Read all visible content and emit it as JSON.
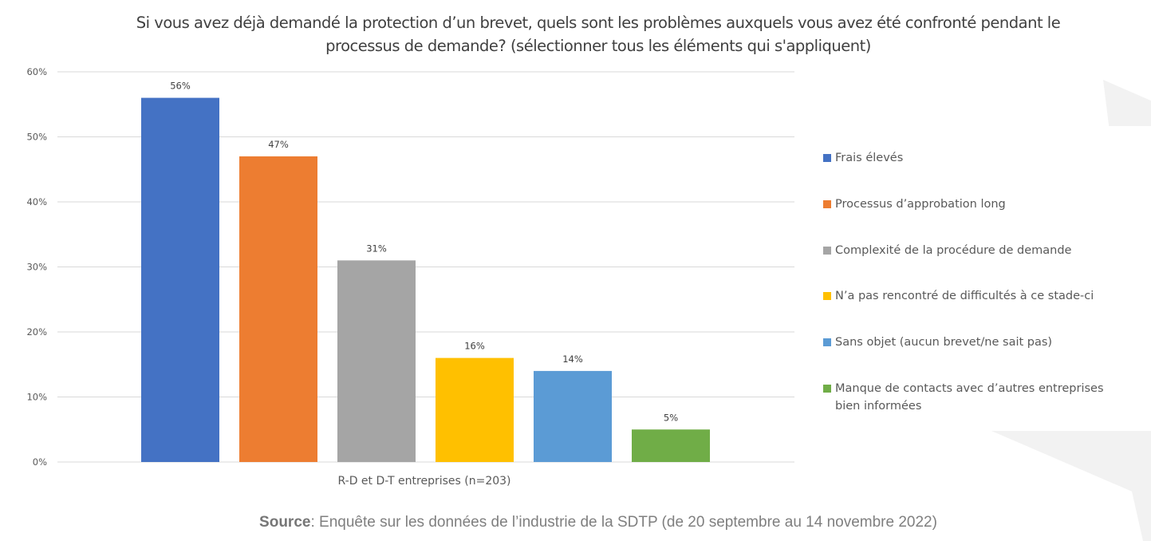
{
  "chart_data": {
    "type": "bar",
    "title": "Si vous avez déjà demandé la protection d’un brevet, quels sont les problèmes auxquels vous avez été confronté pendant le processus de demande? (sélectionner tous les éléments qui s'appliquent)",
    "title_lines": [
      "Si vous avez déjà demandé la protection d’un brevet, quels sont les problèmes auxquels vous avez été confronté pendant le",
      "processus de demande? (sélectionner tous les éléments qui s'appliquent)"
    ],
    "xlabel": "R-D et D-T entreprises (n=203)",
    "ylabel": "",
    "categories": [
      "R-D et D-T entreprises (n=203)"
    ],
    "series": [
      {
        "name": "Frais élevés",
        "values": [
          56
        ],
        "label": "56%",
        "color": "#4472c4"
      },
      {
        "name": "Processus d’approbation long",
        "values": [
          47
        ],
        "label": "47%",
        "color": "#ed7d31"
      },
      {
        "name": "Complexité de la procédure de demande",
        "values": [
          31
        ],
        "label": "31%",
        "color": "#a5a5a5"
      },
      {
        "name": "N’a pas rencontré de difficultés à ce stade-ci",
        "values": [
          16
        ],
        "label": "16%",
        "color": "#ffc000"
      },
      {
        "name": "Sans objet (aucun brevet/ne sait pas)",
        "values": [
          14
        ],
        "label": "14%",
        "color": "#5b9bd5"
      },
      {
        "name": "Manque de contacts avec d’autres entreprises bien informées",
        "values": [
          5
        ],
        "label": "5%",
        "color": "#70ad47"
      }
    ],
    "ylim": [
      0,
      60
    ],
    "yticks": [
      0,
      10,
      20,
      30,
      40,
      50,
      60
    ],
    "ytick_labels": [
      "0%",
      "10%",
      "20%",
      "30%",
      "40%",
      "50%",
      "60%"
    ],
    "grid": true,
    "legend_position": "right"
  },
  "legend": {
    "items": [
      {
        "label": "Frais élevés",
        "color": "#4472c4"
      },
      {
        "label": "Processus d’approbation long",
        "color": "#ed7d31"
      },
      {
        "label": "Complexité de la procédure de demande",
        "color": "#a5a5a5"
      },
      {
        "label": "N’a pas rencontré de difficultés à ce stade-ci",
        "color": "#ffc000"
      },
      {
        "label": "Sans objet (aucun brevet/ne sait pas)",
        "color": "#5b9bd5"
      },
      {
        "label": "Manque de contacts avec d’autres entreprises bien informées",
        "color": "#70ad47"
      }
    ]
  },
  "source": {
    "label": "Source",
    "text": ": Enquête sur les données de l’industrie de la SDTP (de 20 septembre au 14 novembre 2022)"
  }
}
